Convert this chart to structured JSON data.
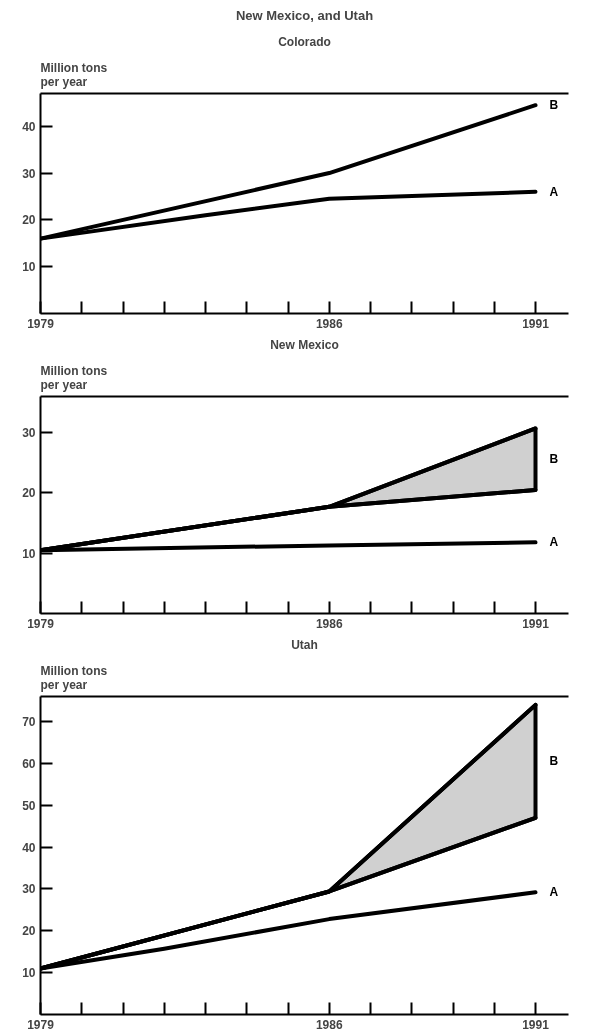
{
  "chart_data": [
    {
      "type": "line",
      "title": "Colorado",
      "annotations": [
        "New Mexico, and Utah"
      ],
      "ylabel": "Million tons per year",
      "xlim": [
        1979,
        1991.8
      ],
      "ylim": [
        0,
        47
      ],
      "xticks": [
        {
          "value": 1979,
          "label": "1979"
        },
        {
          "value": 1980,
          "label": null
        },
        {
          "value": 1981,
          "label": null
        },
        {
          "value": 1982,
          "label": null
        },
        {
          "value": 1983,
          "label": null
        },
        {
          "value": 1984,
          "label": null
        },
        {
          "value": 1985,
          "label": null
        },
        {
          "value": 1986,
          "label": "1986"
        },
        {
          "value": 1987,
          "label": null
        },
        {
          "value": 1988,
          "label": null
        },
        {
          "value": 1989,
          "label": null
        },
        {
          "value": 1990,
          "label": null
        },
        {
          "value": 1991,
          "label": "1991"
        }
      ],
      "yticks": [
        10,
        20,
        30,
        40
      ],
      "series": [
        {
          "name": "A",
          "color": "#000000",
          "x": [
            1979,
            1983,
            1986,
            1991
          ],
          "values": [
            16,
            21,
            24.5,
            26
          ]
        },
        {
          "name": "B",
          "color": "#000000",
          "x": [
            1979,
            1986,
            1991
          ],
          "values": [
            16,
            30,
            44.5
          ]
        }
      ]
    },
    {
      "type": "line",
      "title": "New Mexico",
      "ylabel": "Million tons per year",
      "xlim": [
        1979,
        1991.8
      ],
      "ylim": [
        0,
        36
      ],
      "xticks": [
        {
          "value": 1979,
          "label": "1979"
        },
        {
          "value": 1980,
          "label": null
        },
        {
          "value": 1981,
          "label": null
        },
        {
          "value": 1982,
          "label": null
        },
        {
          "value": 1983,
          "label": null
        },
        {
          "value": 1984,
          "label": null
        },
        {
          "value": 1985,
          "label": null
        },
        {
          "value": 1986,
          "label": "1986"
        },
        {
          "value": 1987,
          "label": null
        },
        {
          "value": 1988,
          "label": null
        },
        {
          "value": 1989,
          "label": null
        },
        {
          "value": 1990,
          "label": null
        },
        {
          "value": 1991,
          "label": "1991"
        }
      ],
      "yticks": [
        10,
        20,
        30
      ],
      "series": [
        {
          "name": "A",
          "color": "#000000",
          "x": [
            1979,
            1986,
            1991
          ],
          "values": [
            10.5,
            11.3,
            11.8
          ]
        },
        {
          "name": "B",
          "color": "#000000",
          "x": [
            1979,
            1986,
            1991
          ],
          "values": [
            10.5,
            17.7,
            30.7
          ],
          "lower": [
            10.5,
            17.7,
            20.5
          ],
          "upper": [
            10.5,
            17.7,
            30.7
          ]
        },
        {
          "color": "#000000",
          "x": [
            1979,
            1986,
            1991
          ],
          "values": [
            10.5,
            17.7,
            20.5
          ]
        }
      ]
    },
    {
      "type": "line",
      "title": "Utah",
      "ylabel": "Million tons per year",
      "xlim": [
        1979,
        1991.8
      ],
      "ylim": [
        0,
        76
      ],
      "xticks": [
        {
          "value": 1979,
          "label": "1979"
        },
        {
          "value": 1980,
          "label": null
        },
        {
          "value": 1981,
          "label": null
        },
        {
          "value": 1982,
          "label": null
        },
        {
          "value": 1983,
          "label": null
        },
        {
          "value": 1984,
          "label": null
        },
        {
          "value": 1985,
          "label": null
        },
        {
          "value": 1986,
          "label": "1986"
        },
        {
          "value": 1987,
          "label": null
        },
        {
          "value": 1988,
          "label": null
        },
        {
          "value": 1989,
          "label": null
        },
        {
          "value": 1990,
          "label": null
        },
        {
          "value": 1991,
          "label": "1991"
        }
      ],
      "yticks": [
        10,
        20,
        30,
        40,
        50,
        60,
        70
      ],
      "series": [
        {
          "name": "A",
          "color": "#000000",
          "x": [
            1979,
            1982,
            1986,
            1991
          ],
          "values": [
            11,
            15.7,
            22.8,
            29.2
          ]
        },
        {
          "name": "B",
          "color": "#000000",
          "x": [
            1979,
            1986,
            1991
          ],
          "values": [
            11,
            29.4,
            74
          ],
          "lower": [
            11,
            29.4,
            47
          ],
          "upper": [
            11,
            29.4,
            74
          ]
        },
        {
          "color": "#000000",
          "x": [
            1979,
            1986,
            1991
          ],
          "values": [
            11,
            29.4,
            47
          ]
        }
      ]
    }
  ]
}
